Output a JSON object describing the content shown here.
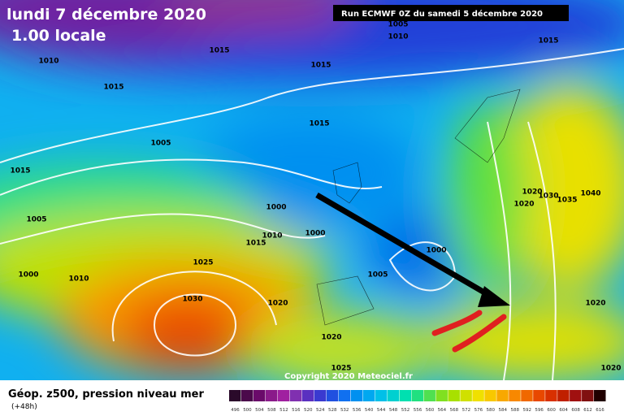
{
  "header": {
    "date": "lundi 7 décembre 2020",
    "time": "1.00 locale",
    "run": "Run ECMWF 0Z du samedi 5 décembre 2020"
  },
  "isobar_labels": [
    "1005",
    "1010",
    "1015",
    "1010",
    "1015",
    "1015",
    "1015",
    "1015",
    "1005",
    "1015",
    "1020",
    "1030",
    "1035",
    "1040",
    "1020",
    "1000",
    "1005",
    "1000",
    "1010",
    "1015",
    "1000",
    "1025",
    "1000",
    "1010",
    "1005",
    "1030",
    "1020",
    "1020",
    "1020",
    "1025",
    "1020"
  ],
  "copyright": "Copyright 2020 Meteociel.fr",
  "footer": {
    "title": "Géop. z500, pression niveau mer",
    "subtitle": "(+48h)"
  },
  "legend": {
    "labels": [
      "496",
      "500",
      "504",
      "508",
      "512",
      "516",
      "520",
      "524",
      "528",
      "532",
      "536",
      "540",
      "544",
      "548",
      "552",
      "556",
      "560",
      "564",
      "568",
      "572",
      "576",
      "580",
      "584",
      "588",
      "592",
      "596",
      "600",
      "604",
      "608",
      "612",
      "616"
    ],
    "colors": [
      "#2a0a2a",
      "#4b0a4b",
      "#6a0a6a",
      "#8a1a8a",
      "#a020a0",
      "#8030b0",
      "#5a30c0",
      "#3a3ad0",
      "#2050e0",
      "#1070f0",
      "#0090f0",
      "#00a8f0",
      "#00c0e8",
      "#00d0d0",
      "#00e0b0",
      "#20e080",
      "#50e050",
      "#80e020",
      "#a8e000",
      "#d0e000",
      "#f0e000",
      "#f8c800",
      "#f8a800",
      "#f88800",
      "#f06800",
      "#e84800",
      "#d83000",
      "#c02000",
      "#a01010",
      "#801010",
      "#200000"
    ]
  }
}
